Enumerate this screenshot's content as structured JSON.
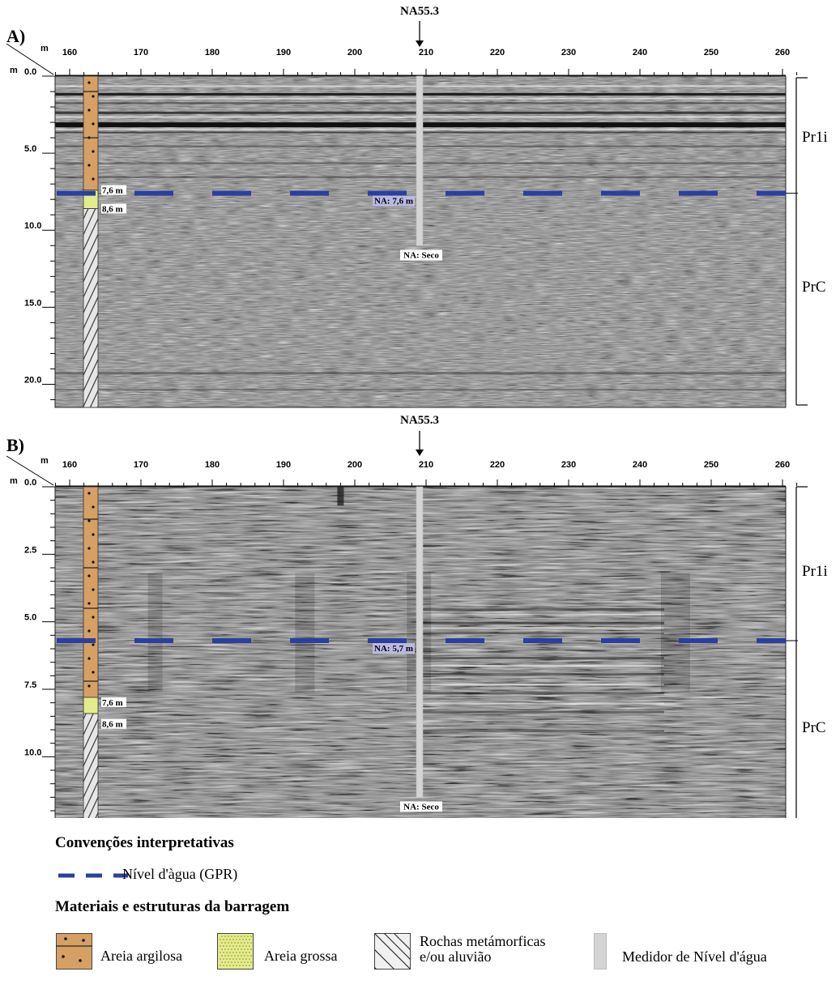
{
  "panels": [
    {
      "label": "A)",
      "well_label": "NA55.3",
      "distance_unit": "m",
      "depth_unit": "m",
      "x_ticks": [
        "160",
        "170",
        "180",
        "190",
        "200",
        "210",
        "220",
        "230",
        "240",
        "250",
        "260"
      ],
      "y_ticks": [
        "0.0",
        "5.0",
        "10.0",
        "15.0",
        "20.0"
      ],
      "y_range": [
        0,
        21.5
      ],
      "water_table_depth": 7.6,
      "borehole_labels": [
        "7,6 m",
        "8,6 m"
      ],
      "gpr_water_label": "NA: 7,6 m",
      "gauge_label": "NA: Seco",
      "units": [
        "Pr1i",
        "PrC"
      ]
    },
    {
      "label": "B)",
      "well_label": "NA55.3",
      "distance_unit": "m",
      "depth_unit": "m",
      "x_ticks": [
        "160",
        "170",
        "180",
        "190",
        "200",
        "210",
        "220",
        "230",
        "240",
        "250",
        "260"
      ],
      "y_ticks": [
        "0.0",
        "2.5",
        "5.0",
        "7.5",
        "10.0"
      ],
      "y_range": [
        0,
        12.3
      ],
      "water_table_depth": 5.7,
      "borehole_labels": [
        "7,6 m",
        "8,6 m"
      ],
      "gpr_water_label": "NA: 5,7 m",
      "gauge_label": "NA: Seco",
      "units": [
        "Pr1i",
        "PrC"
      ]
    }
  ],
  "legend": {
    "conventions_title": "Convenções interpretativas",
    "water_level_label": "Nível d'àgua (GPR)",
    "materials_title": "Materiais e estruturas da barragem",
    "items": [
      "Areia argilosa",
      "Areia grossa",
      "Rochas metámorficas\ne/ou aluvião",
      "Medidor de Nível d'água"
    ]
  },
  "colors": {
    "water_line": "#2b3f9e",
    "clayey_sand": "#d6a064",
    "coarse_sand": "#e3ec8c",
    "gauge": "#d4d4d4",
    "label_bg": "#b9b9e2"
  }
}
